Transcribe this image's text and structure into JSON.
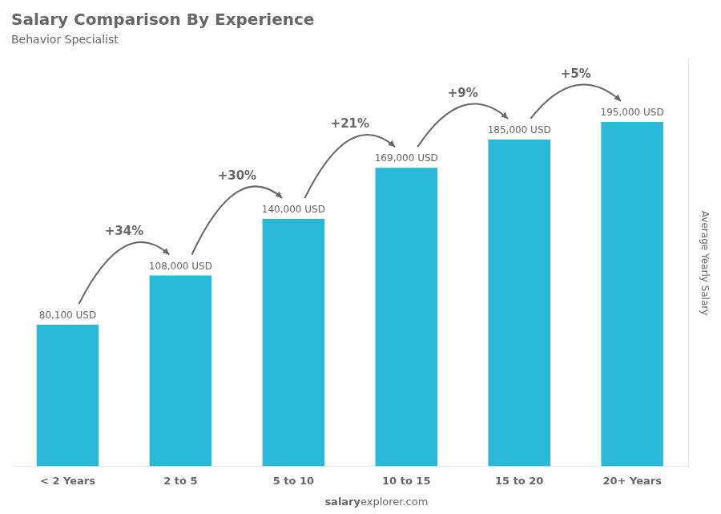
{
  "chart_data": {
    "type": "bar",
    "title": "Salary Comparison By Experience",
    "subtitle": "Behavior Specialist",
    "categories": [
      "< 2 Years",
      "2 to 5",
      "5 to 10",
      "10 to 15",
      "15 to 20",
      "20+ Years"
    ],
    "values": [
      80100,
      108000,
      140000,
      169000,
      185000,
      195000
    ],
    "value_labels": [
      "80,100 USD",
      "108,000 USD",
      "140,000 USD",
      "169,000 USD",
      "185,000 USD",
      "195,000 USD"
    ],
    "data_labels": true,
    "annotations": [
      "+34%",
      "+30%",
      "+21%",
      "+9%",
      "+5%"
    ],
    "ylabel": "Average Yearly Salary",
    "footer": [
      "salary",
      "explorer.com"
    ],
    "color": "#2ab8d8",
    "ylim": [
      0,
      230000
    ],
    "grid": false,
    "tick_labels": "x"
  }
}
